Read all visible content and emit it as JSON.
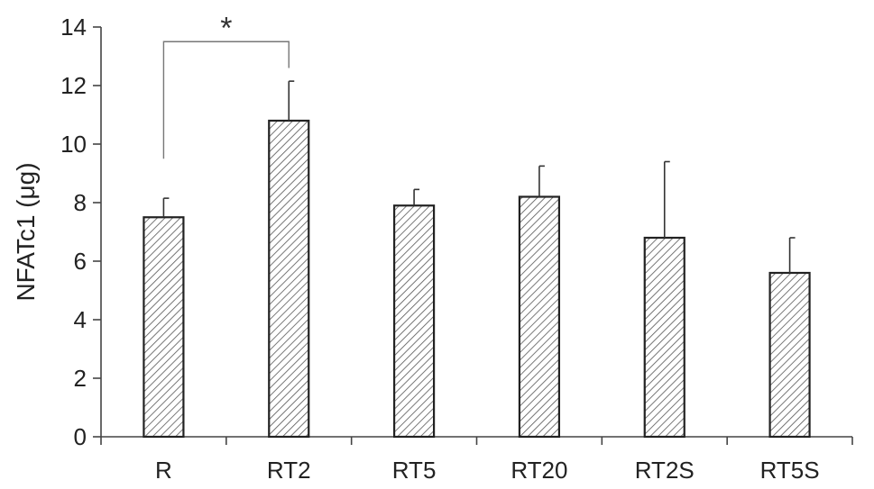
{
  "chart_data": {
    "type": "bar",
    "categories": [
      "R",
      "RT2",
      "RT5",
      "RT20",
      "RT2S",
      "RT5S"
    ],
    "values": [
      7.5,
      10.8,
      7.9,
      8.2,
      6.8,
      5.6
    ],
    "errors": [
      0.65,
      1.35,
      0.55,
      1.05,
      2.6,
      1.2
    ],
    "ylabel": "NFATc1 (μg)",
    "ylim": [
      0,
      14
    ],
    "yticks": [
      0,
      2,
      4,
      6,
      8,
      10,
      12,
      14
    ],
    "grid": false,
    "bar_fill": "hatched",
    "significance": [
      {
        "from": "R",
        "to": "RT2",
        "label": "*"
      }
    ]
  }
}
